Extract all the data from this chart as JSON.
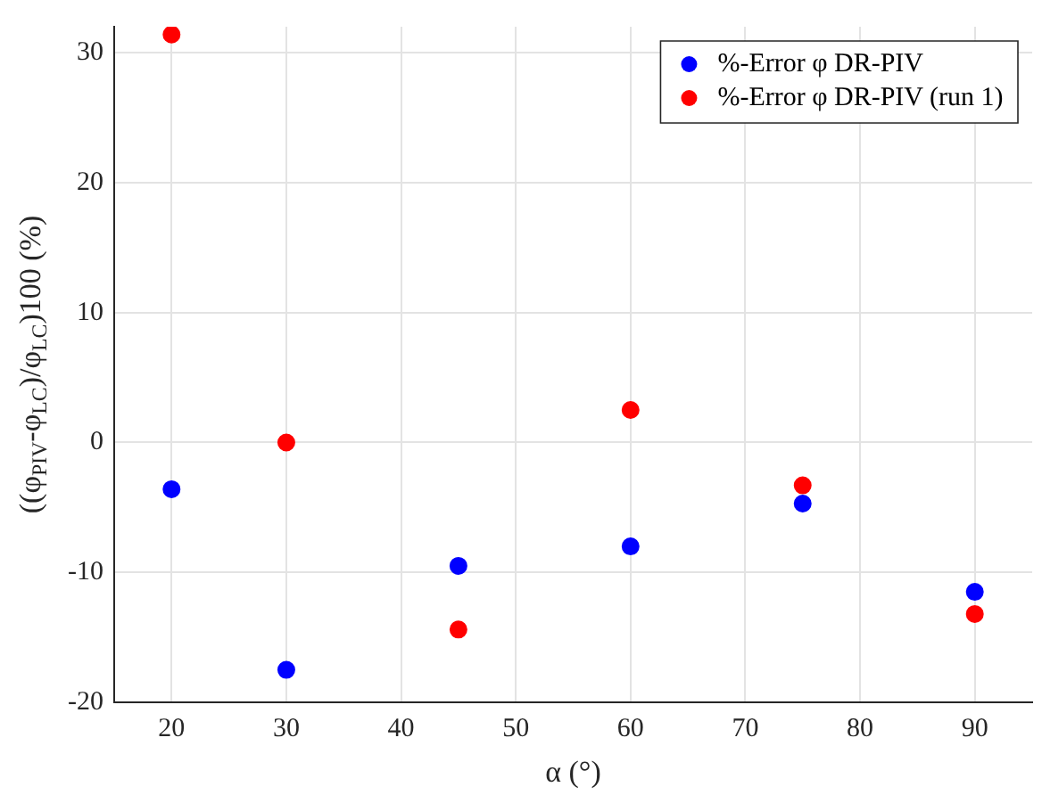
{
  "chart_data": {
    "type": "scatter",
    "xlabel": "α (°)",
    "ylabel": "((φ$_{PIV}$-φ$_{LC}$)/φ$_{LC}$)100 (%)",
    "x": [
      20,
      30,
      45,
      60,
      75,
      90
    ],
    "series": [
      {
        "name": "%-Error φ DR-PIV",
        "color": "#0000ff",
        "values": [
          -3.6,
          -17.5,
          -9.5,
          -8,
          -4.7,
          -11.5
        ]
      },
      {
        "name": "%-Error φ DR-PIV (run 1)",
        "color": "#ff0000",
        "values": [
          31.4,
          0,
          -14.4,
          2.5,
          -3.3,
          -13.2
        ]
      }
    ],
    "xlim": [
      15,
      95
    ],
    "xticks": [
      20,
      30,
      40,
      50,
      60,
      70,
      80,
      90
    ],
    "ylim": [
      -20,
      32
    ],
    "yticks": [
      -20,
      -10,
      0,
      10,
      20,
      30
    ],
    "grid": true,
    "legend": "top right",
    "marker": "circle"
  }
}
